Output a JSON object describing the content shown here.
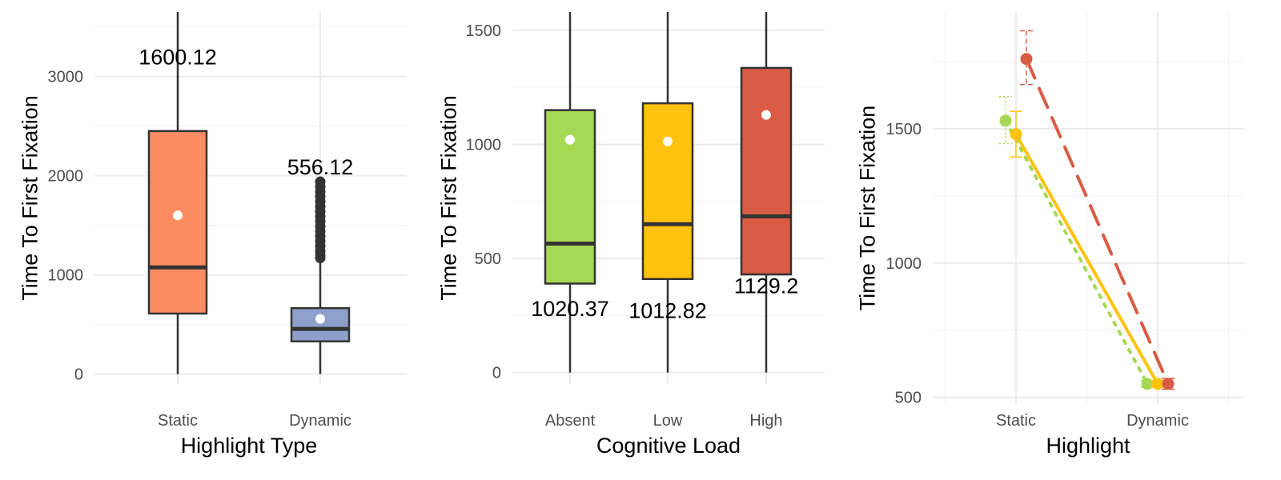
{
  "chart_data": [
    {
      "type": "box",
      "xlabel": "Highlight Type",
      "ylabel": "Time To First Fixation",
      "ylim": [
        -100,
        3650
      ],
      "yticks": [
        0,
        1000,
        2000,
        3000
      ],
      "grid": true,
      "categories": [
        "Static",
        "Dynamic"
      ],
      "boxes": [
        {
          "category": "Static",
          "whisker_low": 0,
          "q1": 610,
          "median": 1075,
          "q3": 2450,
          "whisker_high": 3650,
          "mean": 1600.12,
          "outliers": [],
          "color": "#FC8D62"
        },
        {
          "category": "Dynamic",
          "whisker_low": 0,
          "q1": 330,
          "median": 455,
          "q3": 665,
          "whisker_high": 1150,
          "mean": 556.12,
          "outliers": [
            1170,
            1200,
            1240,
            1290,
            1340,
            1390,
            1440,
            1490,
            1540,
            1590,
            1640,
            1690,
            1740,
            1790,
            1840,
            1890,
            1940
          ],
          "color": "#8DA0CB"
        }
      ],
      "annotations": [
        {
          "category": "Static",
          "y": 3195,
          "text": "1600.12"
        },
        {
          "category": "Dynamic",
          "y": 2085,
          "text": "556.12"
        }
      ]
    },
    {
      "type": "box",
      "xlabel": "Cognitive Load",
      "ylabel": "Time To First Fixation",
      "ylim": [
        -50,
        1580
      ],
      "yticks": [
        0,
        500,
        1000,
        1500
      ],
      "grid": true,
      "categories": [
        "Absent",
        "Low",
        "High"
      ],
      "boxes": [
        {
          "category": "Absent",
          "whisker_low": 0,
          "q1": 390,
          "median": 565,
          "q3": 1150,
          "whisker_high": 1580,
          "mean": 1020.37,
          "outliers": [],
          "color": "#A6D854"
        },
        {
          "category": "Low",
          "whisker_low": 0,
          "q1": 410,
          "median": 650,
          "q3": 1180,
          "whisker_high": 1580,
          "mean": 1012.82,
          "outliers": [],
          "color": "#FFC20E"
        },
        {
          "category": "High",
          "whisker_low": 0,
          "q1": 430,
          "median": 685,
          "q3": 1335,
          "whisker_high": 1580,
          "mean": 1129.2,
          "outliers": [],
          "color": "#D95B43"
        }
      ],
      "annotations": [
        {
          "category": "Absent",
          "y": 280,
          "text": "1020.37"
        },
        {
          "category": "Low",
          "y": 270,
          "text": "1012.82"
        },
        {
          "category": "High",
          "y": 380,
          "text": "1129.2"
        }
      ]
    },
    {
      "type": "line",
      "xlabel": "Highlight",
      "ylabel": "Time To First Fixation",
      "ylim": [
        475,
        1935
      ],
      "yticks": [
        500,
        1000,
        1500
      ],
      "grid": true,
      "categories": [
        "Static",
        "Dynamic"
      ],
      "series": [
        {
          "values": [
            1530,
            550
          ],
          "error_low": [
            1445,
            538
          ],
          "error_high": [
            1620,
            562
          ],
          "color": "#A6D854",
          "linestyle": "dotted"
        },
        {
          "values": [
            1480,
            550
          ],
          "error_low": [
            1395,
            538
          ],
          "error_high": [
            1565,
            562
          ],
          "color": "#FFC20E",
          "linestyle": "solid"
        },
        {
          "values": [
            1760,
            550
          ],
          "error_low": [
            1665,
            530
          ],
          "error_high": [
            1865,
            570
          ],
          "color": "#D95B43",
          "linestyle": "dashed"
        }
      ]
    }
  ]
}
